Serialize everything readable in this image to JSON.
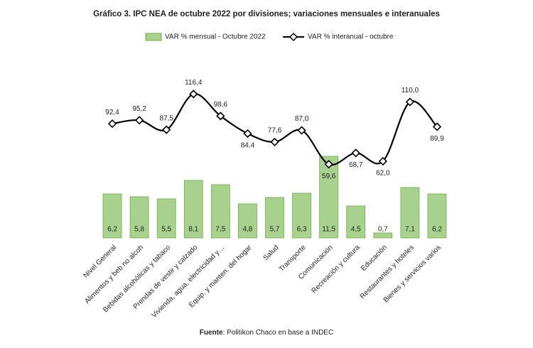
{
  "chart_data": {
    "type": "bar-line",
    "title": "Gráfico 3. IPC NEA de octubre 2022 por divisiones; variaciones mensuales e interanuales",
    "categories": [
      "Nivel General",
      "Alimentos y beb no alcoh",
      "Bebidas alcohólicas y tabaco",
      "Prendas de vestir y calzado",
      "Vivienda, agua, electricidad y…",
      "Equip. y manten. del hogar",
      "Salud",
      "Transporte",
      "Comunicación",
      "Recreación y cultura",
      "Educación",
      "Restaurantes y hoteles",
      "Bienes y servicios varios"
    ],
    "series": [
      {
        "name": "VAR % mensual - Octubre 2022",
        "color": "#a9d18e",
        "stroke": "#70ad47",
        "kind": "bar",
        "values": [
          6.2,
          5.8,
          5.5,
          8.1,
          7.5,
          4.8,
          5.7,
          6.3,
          11.5,
          4.5,
          0.7,
          7.1,
          6.2
        ],
        "value_labels": [
          "6,2",
          "5,8",
          "5,5",
          "8,1",
          "7,5",
          "4,8",
          "5,7",
          "6,3",
          "11,5",
          "4,5",
          "0,7",
          "7,1",
          "6,2"
        ]
      },
      {
        "name": "VAR % interanual - octubre",
        "color": "#000000",
        "kind": "line",
        "axis": "y2",
        "values": [
          92.4,
          95.2,
          87.5,
          116.4,
          98.6,
          84.4,
          77.6,
          87.0,
          59.6,
          68.7,
          62.0,
          110.0,
          89.9
        ],
        "value_labels": [
          "92,4",
          "95,2",
          "87,5",
          "116,4",
          "98,6",
          "84,4",
          "77,6",
          "87,0",
          "59,6",
          "68,7",
          "62,0",
          "110,0",
          "89,9"
        ]
      }
    ],
    "ylim": [
      0,
      23.5
    ],
    "y2lim": [
      0,
      135
    ],
    "source_label": "Fuente",
    "source_text": ": Politikon Chaco en base a INDEC"
  }
}
